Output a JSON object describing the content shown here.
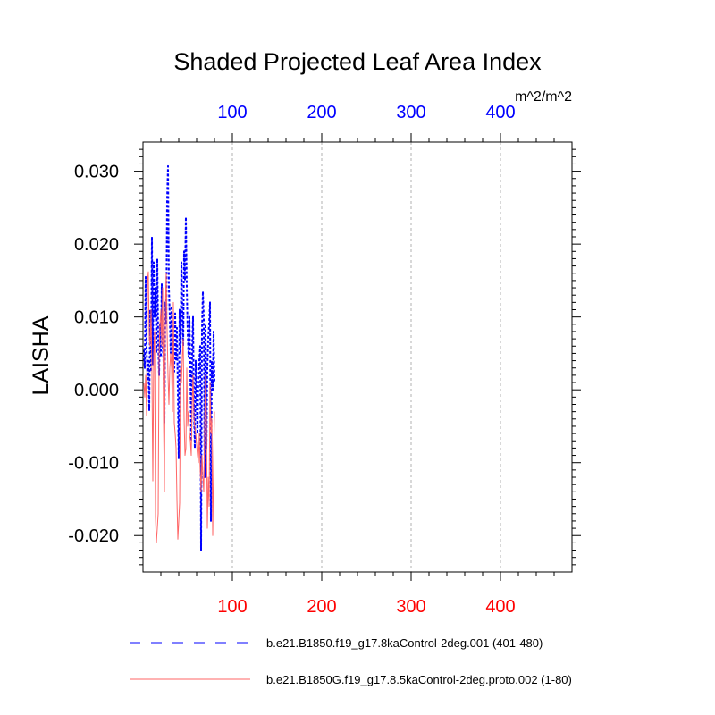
{
  "chart_data": {
    "type": "line",
    "title": "Shaded Projected Leaf Area Index",
    "ylabel": "LAISHA",
    "units": "m^2/m^2",
    "xlim": [
      0,
      480
    ],
    "ylim": [
      -0.025,
      0.034
    ],
    "x_ticks": [
      100,
      200,
      300,
      400
    ],
    "x_tick_labels": [
      "100",
      "200",
      "300",
      "400"
    ],
    "top_axis_color": "#0000ff",
    "bottom_axis_color": "#ff0000",
    "y_ticks": [
      0.03,
      0.02,
      0.01,
      0.0,
      -0.01,
      -0.02
    ],
    "y_tick_labels": [
      "0.030",
      "0.020",
      "0.010",
      "0.000",
      "-0.010",
      "-0.020"
    ],
    "grid": "vertical dashed at major x ticks",
    "legend_position": "bottom",
    "series": [
      {
        "name": "b.e21.B1850.f19_g17.8kaControl-2deg.001 (401-480)",
        "color": "#0000ff",
        "style": "dashed",
        "x": [
          1,
          2,
          3,
          4,
          5,
          6,
          7,
          8,
          9,
          10,
          11,
          12,
          13,
          14,
          15,
          16,
          17,
          18,
          19,
          20,
          21,
          22,
          23,
          24,
          25,
          26,
          27,
          28,
          29,
          30,
          31,
          32,
          33,
          34,
          35,
          36,
          37,
          38,
          39,
          40,
          41,
          42,
          43,
          44,
          45,
          46,
          47,
          48,
          49,
          50,
          51,
          52,
          53,
          54,
          55,
          56,
          57,
          58,
          59,
          60,
          61,
          62,
          63,
          64,
          65,
          66,
          67,
          68,
          69,
          70,
          71,
          72,
          73,
          74,
          75,
          76,
          77,
          78,
          79,
          80
        ],
        "y": [
          0.0055,
          0.003,
          0.0155,
          0.006,
          0.0012,
          0.004,
          -0.0028,
          0.011,
          0.0025,
          0.021,
          0.0035,
          0.0175,
          0.01,
          0.014,
          0.005,
          0.018,
          0.007,
          0.002,
          0.009,
          0.0045,
          0.0145,
          0.0065,
          0.0038,
          -0.0045,
          0.012,
          0.009,
          0.026,
          0.0307,
          0.014,
          0.01,
          0.005,
          0.0115,
          0.004,
          0.007,
          0.0025,
          0.0105,
          0.004,
          0.0085,
          0.0,
          -0.0095,
          0.011,
          0.005,
          0.0175,
          0.011,
          0.006,
          0.019,
          0.015,
          0.0237,
          0.014,
          0.008,
          0.0045,
          0.01,
          0.003,
          -0.007,
          0.006,
          0.01,
          -0.0025,
          -0.008,
          0.004,
          -0.001,
          -0.006,
          0.002,
          0.004,
          0.006,
          -0.022,
          0.008,
          0.0135,
          0.01,
          -0.012,
          0.009,
          -0.008,
          0.003,
          0.007,
          0.009,
          0.012,
          -0.018,
          0.004,
          0.0,
          0.008,
          0.001
        ]
      },
      {
        "name": "b.e21.B1850G.f19_g17.8.5kaControl-2deg.proto.002 (1-80)",
        "color": "#ff6666",
        "style": "solid",
        "x": [
          1,
          2,
          3,
          4,
          5,
          6,
          7,
          8,
          9,
          10,
          11,
          12,
          13,
          14,
          15,
          16,
          17,
          18,
          19,
          20,
          21,
          22,
          23,
          24,
          25,
          26,
          27,
          28,
          29,
          30,
          31,
          32,
          33,
          34,
          35,
          36,
          37,
          38,
          39,
          40,
          41,
          42,
          43,
          44,
          45,
          46,
          47,
          48,
          49,
          50,
          51,
          52,
          53,
          54,
          55,
          56,
          57,
          58,
          59,
          60,
          61,
          62,
          63,
          64,
          65,
          66,
          67,
          68,
          69,
          70,
          71,
          72,
          73,
          74,
          75,
          76,
          77,
          78,
          79,
          80
        ],
        "y": [
          0.001,
          -0.001,
          0.002,
          -0.0035,
          0.015,
          0.0162,
          0.007,
          0.006,
          0.011,
          0.002,
          -0.0125,
          0.005,
          0.008,
          -0.0175,
          -0.021,
          -0.019,
          -0.017,
          0.005,
          0.009,
          0.011,
          0.006,
          0.014,
          -0.004,
          -0.014,
          0.011,
          0.016,
          0.008,
          0.002,
          -0.002,
          0.003,
          0.005,
          0.003,
          -0.003,
          0.012,
          -0.0045,
          -0.006,
          -0.008,
          -0.015,
          -0.0205,
          -0.018,
          -0.0155,
          0.003,
          0.001,
          0.0045,
          0.007,
          -0.004,
          -0.009,
          -0.008,
          0.003,
          -0.005,
          -0.003,
          -0.006,
          -0.007,
          -0.009,
          -0.002,
          0.002,
          -0.004,
          -0.005,
          -0.006,
          -0.0075,
          -0.009,
          -0.01,
          -0.006,
          -0.011,
          -0.014,
          -0.009,
          -0.012,
          -0.014,
          -0.005,
          0.002,
          -0.004,
          -0.019,
          -0.012,
          -0.016,
          0.001,
          -0.006,
          -0.004,
          -0.02,
          -0.01,
          -0.003
        ]
      }
    ]
  }
}
